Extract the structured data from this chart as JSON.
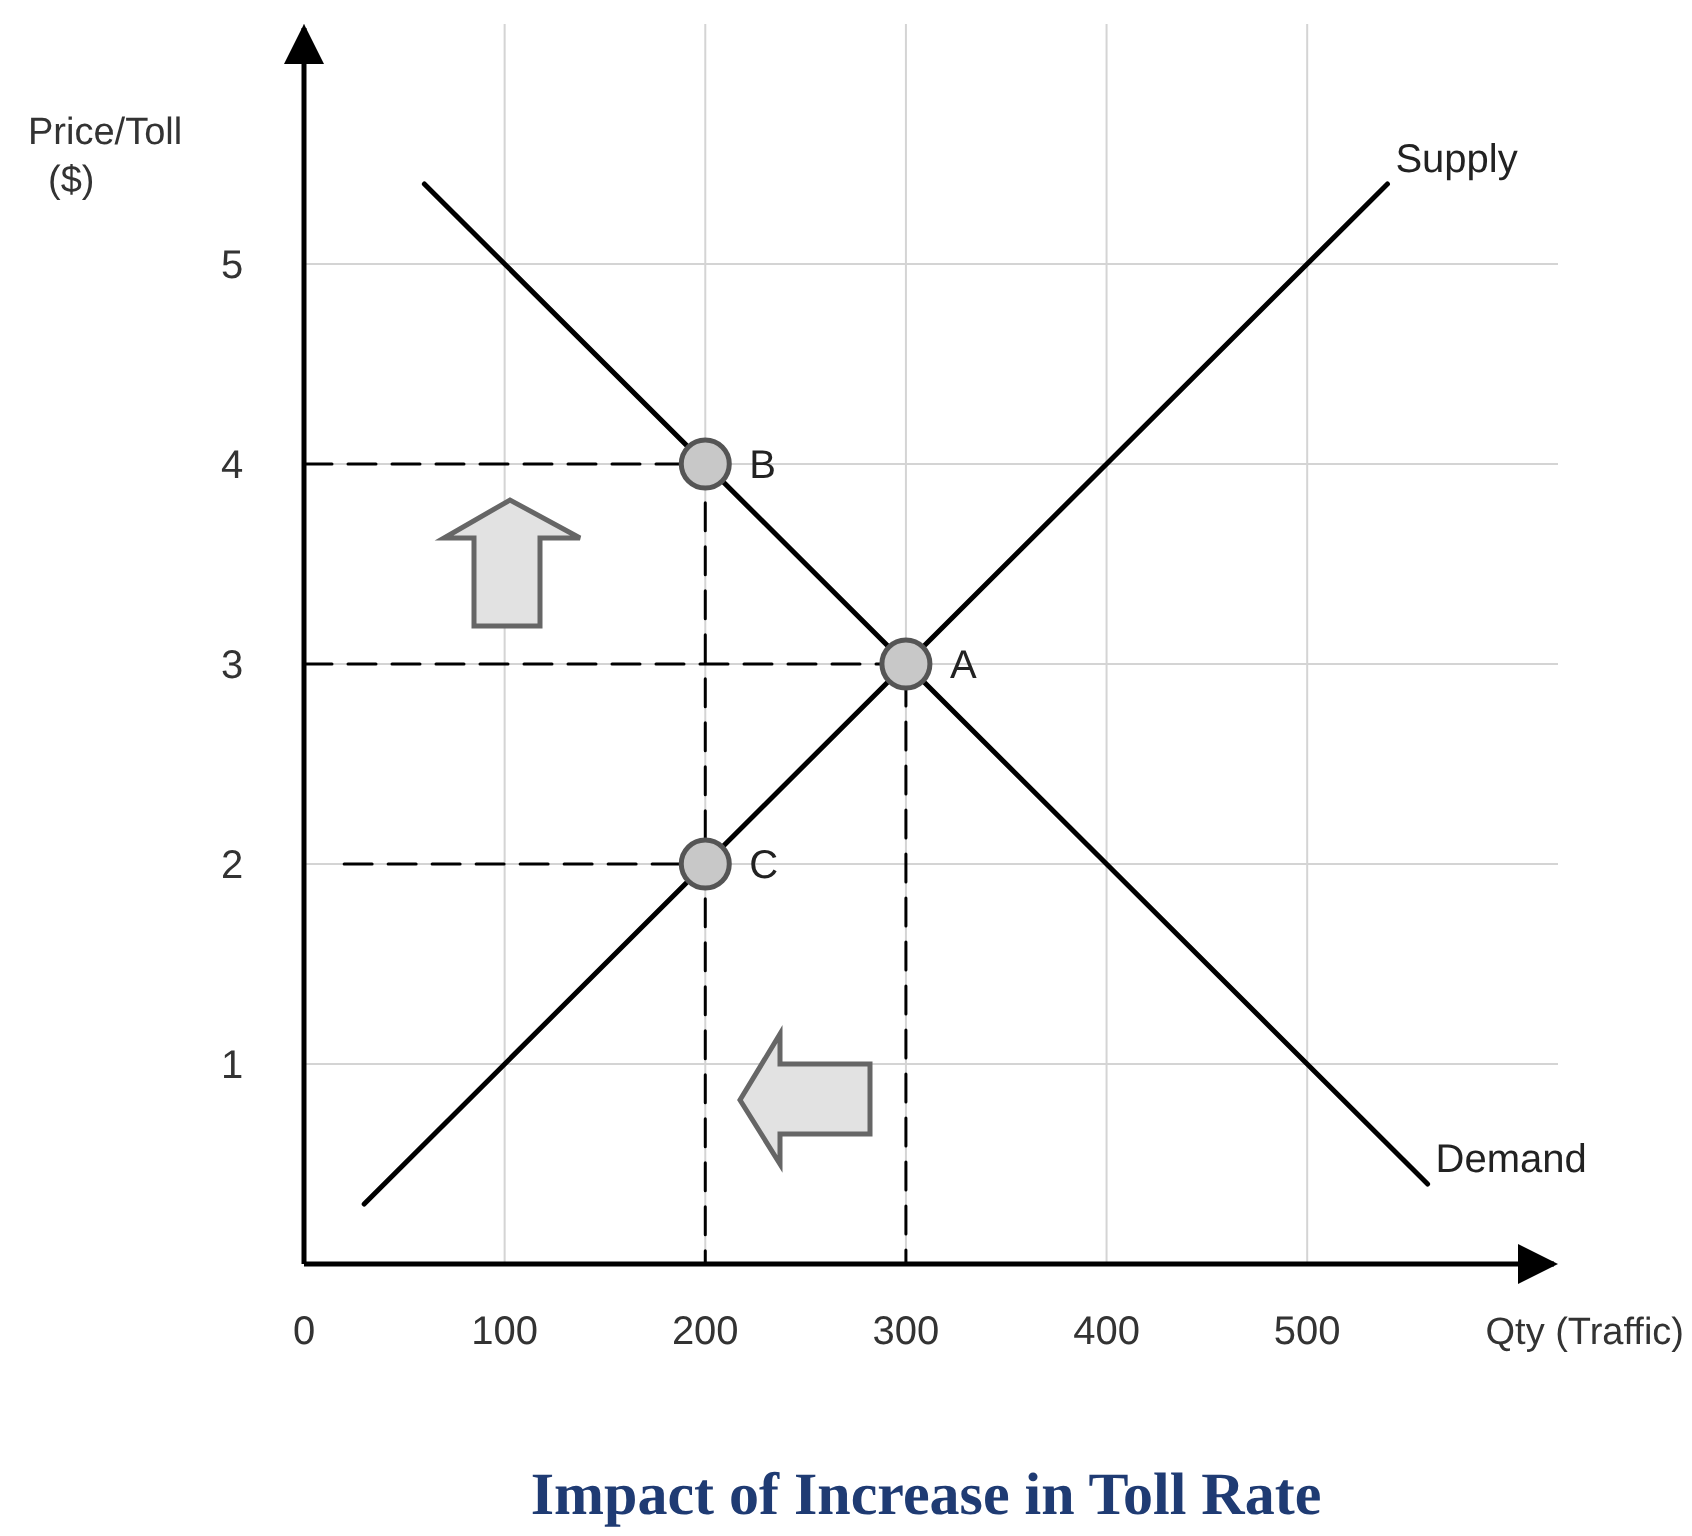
{
  "chart_data": {
    "type": "line",
    "title": "Impact of Increase in Toll Rate",
    "xlabel": "Qty (Traffic)",
    "ylabel": "Price/Toll ($)",
    "xlim": [
      0,
      625
    ],
    "ylim": [
      0,
      6.2
    ],
    "xticks": [
      0,
      100,
      200,
      300,
      400,
      500
    ],
    "yticks": [
      1,
      2,
      3,
      4,
      5
    ],
    "grid": true,
    "series": [
      {
        "name": "Supply",
        "color": "#000000",
        "x": [
          30,
          540
        ],
        "values": [
          0.3,
          5.4
        ]
      },
      {
        "name": "Demand",
        "color": "#000000",
        "x": [
          60,
          560
        ],
        "values": [
          5.4,
          0.4
        ]
      },
      {
        "type": "line",
        "color": "#000000",
        "line_style": "dashed",
        "x": [
          0,
          200,
          200
        ],
        "values": [
          4,
          4,
          0
        ]
      },
      {
        "type": "line",
        "color": "#000000",
        "line_style": "dashed",
        "x": [
          0,
          300,
          300
        ],
        "values": [
          3,
          3,
          0
        ]
      },
      {
        "type": "line",
        "color": "#000000",
        "line_style": "dashed",
        "x": [
          20,
          200
        ],
        "values": [
          2,
          2
        ]
      },
      {
        "type": "scatter",
        "color": "#c8c8c8",
        "marker": "circle",
        "x": [
          300,
          200,
          200
        ],
        "values": [
          3,
          4,
          2
        ]
      }
    ],
    "annotations": [
      "A",
      "B",
      "C"
    ]
  }
}
